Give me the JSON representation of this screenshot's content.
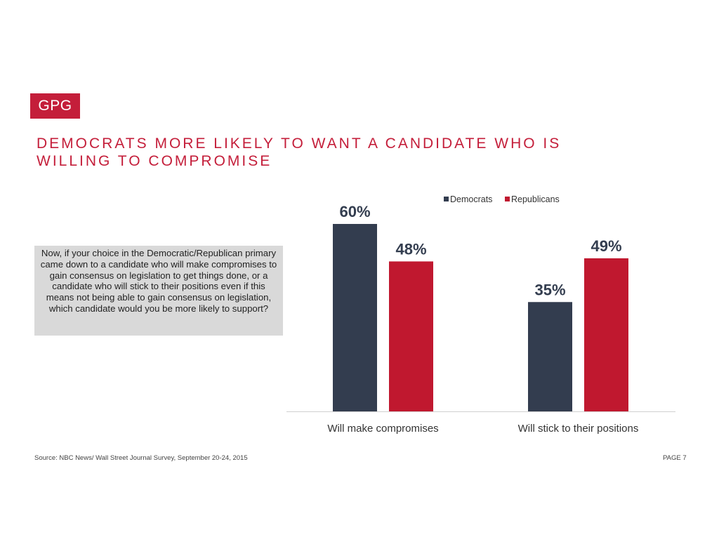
{
  "logo": "GPG",
  "title_line1": "DEMOCRATS MORE LIKELY TO WANT A CANDIDATE WHO IS",
  "title_line2": "WILLING TO COMPROMISE",
  "question": "Now, if your choice in the Democratic/Republican primary came down to a candidate who will make compromises to gain consensus on legislation to get things done, or a candidate who will stick to their positions even if this means not being able to gain consensus on legislation, which candidate would you be more likely to support?",
  "footer": {
    "source": "Source: NBC News/ Wall Street Journal Survey, September 20-24, 2015",
    "page": "PAGE 7"
  },
  "chart_data": {
    "type": "bar",
    "categories": [
      "Will make compromises",
      "Will stick to their positions"
    ],
    "series": [
      {
        "name": "Democrats",
        "color": "#333d4f",
        "values": [
          60,
          35
        ],
        "labels": [
          "60%",
          "35%"
        ]
      },
      {
        "name": "Republicans",
        "color": "#c0182f",
        "values": [
          48,
          49
        ],
        "labels": [
          "48%",
          "49%"
        ]
      }
    ],
    "ylim": [
      0,
      60
    ],
    "grid": false,
    "legend_placement": "top-right"
  }
}
